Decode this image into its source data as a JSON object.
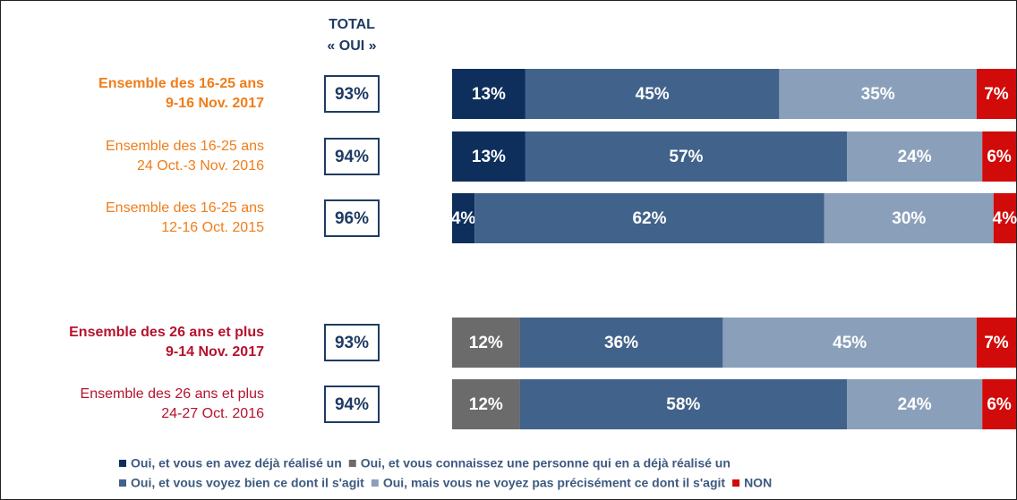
{
  "chart_data": {
    "type": "stacked-bar-horizontal",
    "header": [
      "TOTAL",
      "« OUI »"
    ],
    "categories": [
      [
        "Ensemble des 16-25 ans",
        "9-16 Nov. 2017"
      ],
      [
        "Ensemble des 16-25 ans",
        "24 Oct.-3 Nov. 2016"
      ],
      [
        "Ensemble des 16-25 ans",
        "12-16 Oct. 2015"
      ],
      [
        "Ensemble des 26 ans et plus",
        "9-14 Nov. 2017"
      ],
      [
        "Ensemble des 26 ans et plus",
        "24-27 Oct. 2016"
      ]
    ],
    "category_colors": [
      "#f07d1a",
      "#f07d1a",
      "#f07d1a",
      "#b5122e",
      "#b5122e"
    ],
    "category_bold": [
      true,
      false,
      false,
      true,
      false
    ],
    "totals": {
      "values": [
        93,
        94,
        96,
        93,
        94
      ],
      "value_labels": [
        "93%",
        "94%",
        "96%",
        "93%",
        "94%"
      ]
    },
    "series": [
      {
        "name": "Oui, et vous en avez déjà réalisé un",
        "color": "#0e2f5c",
        "values": [
          13,
          13,
          4,
          null,
          null
        ],
        "value_labels": [
          "13%",
          "13%",
          "4%",
          null,
          null
        ]
      },
      {
        "name": "Oui, et vous connaissez une personne qui en a déjà réalisé un",
        "color": "#6b6b6b",
        "values": [
          null,
          null,
          null,
          12,
          12
        ],
        "value_labels": [
          null,
          null,
          null,
          "12%",
          "12%"
        ]
      },
      {
        "name": "Oui, et vous voyez bien ce dont il s'agit",
        "color": "#41628a",
        "values": [
          45,
          57,
          62,
          36,
          58
        ],
        "value_labels": [
          "45%",
          "57%",
          "62%",
          "36%",
          "58%"
        ]
      },
      {
        "name": "Oui, mais vous ne voyez pas précisément ce dont il s'agit",
        "color": "#8aa0ba",
        "values": [
          35,
          24,
          30,
          45,
          24
        ],
        "value_labels": [
          "35%",
          "24%",
          "30%",
          "45%",
          "24%"
        ]
      },
      {
        "name": "NON",
        "color": "#d10a0a",
        "values": [
          7,
          6,
          4,
          7,
          6
        ],
        "value_labels": [
          "7%",
          "6%",
          "4%",
          "7%",
          "6%"
        ]
      }
    ]
  }
}
